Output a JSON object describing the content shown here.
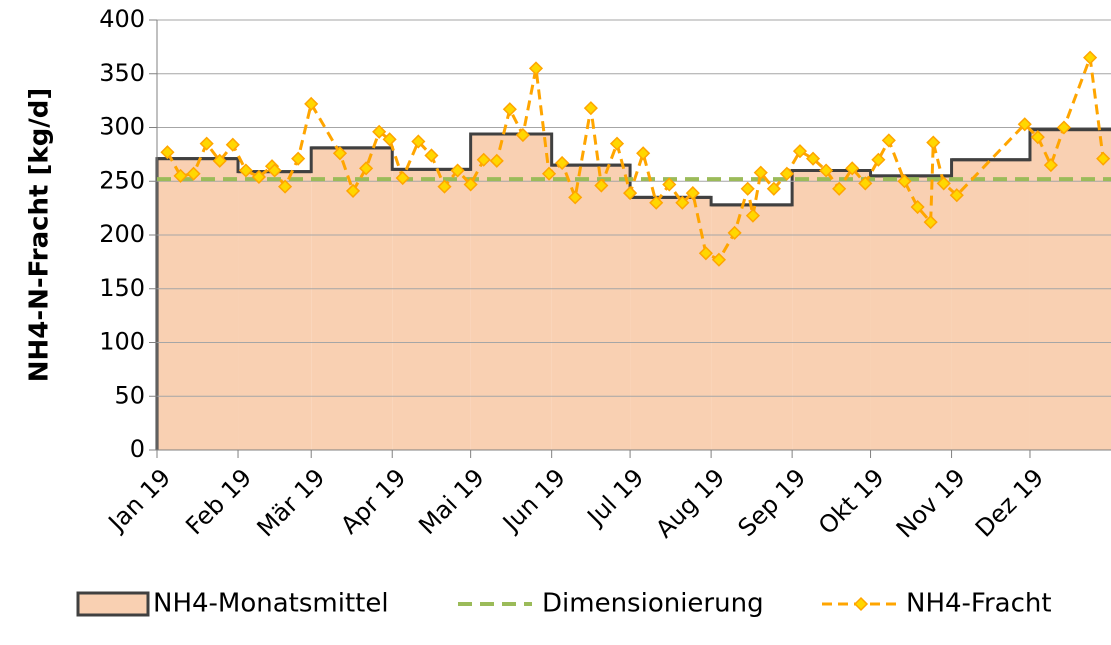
{
  "chart_data": {
    "type": "line",
    "ylabel": "NH4-N-Fracht [kg/d]",
    "xlim": [
      0,
      365
    ],
    "xticks": [
      {
        "value": 0,
        "label": "Jan 19"
      },
      {
        "value": 31,
        "label": "Feb 19"
      },
      {
        "value": 59,
        "label": "Mär 19"
      },
      {
        "value": 90,
        "label": "Apr 19"
      },
      {
        "value": 120,
        "label": "Mai 19"
      },
      {
        "value": 151,
        "label": "Jun 19"
      },
      {
        "value": 181,
        "label": "Jul 19"
      },
      {
        "value": 212,
        "label": "Aug 19"
      },
      {
        "value": 243,
        "label": "Sep 19"
      },
      {
        "value": 273,
        "label": "Okt 19"
      },
      {
        "value": 304,
        "label": "Nov 19"
      },
      {
        "value": 334,
        "label": "Dez 19"
      }
    ],
    "ylim": [
      0,
      400
    ],
    "yticks": [
      0,
      50,
      100,
      150,
      200,
      250,
      300,
      350,
      400
    ],
    "grid": true,
    "legend": "bottom",
    "series": [
      {
        "name": "NH4-Monatsmittel",
        "type": "step",
        "color": "#404040",
        "fill": "#f9d0b2",
        "values": [
          271,
          259,
          281,
          261,
          294,
          265,
          235,
          228,
          260,
          255,
          270,
          298
        ]
      },
      {
        "name": "Dimensionierung",
        "type": "constant",
        "color": "#9bbb59",
        "value": 252
      },
      {
        "name": "NH4-Fracht",
        "type": "line",
        "color": "#ffa500",
        "marker_fill": "#ffd700",
        "x": [
          4,
          9,
          14,
          19,
          24,
          29,
          34,
          39,
          44,
          45,
          49,
          54,
          59,
          70,
          75,
          80,
          85,
          89,
          94,
          100,
          105,
          110,
          115,
          120,
          125,
          130,
          135,
          140,
          145,
          150,
          155,
          160,
          166,
          170,
          176,
          181,
          186,
          191,
          196,
          201,
          205,
          210,
          215,
          221,
          226,
          228,
          231,
          236,
          241,
          246,
          251,
          256,
          261,
          266,
          271,
          276,
          280,
          286,
          291,
          296,
          297,
          301,
          306,
          332,
          337,
          342,
          347,
          357,
          362
        ],
        "values": [
          277,
          255,
          257,
          285,
          269,
          284,
          260,
          254,
          264,
          260,
          245,
          271,
          322,
          276,
          241,
          262,
          296,
          289,
          253,
          287,
          274,
          245,
          260,
          247,
          270,
          269,
          317,
          293,
          355,
          257,
          267,
          235,
          318,
          246,
          285,
          239,
          276,
          230,
          247,
          230,
          239,
          183,
          177,
          202,
          243,
          218,
          258,
          243,
          257,
          278,
          271,
          260,
          243,
          262,
          248,
          270,
          288,
          250,
          226,
          212,
          286,
          248,
          237,
          303,
          291,
          265,
          300,
          365,
          271
        ]
      }
    ]
  }
}
